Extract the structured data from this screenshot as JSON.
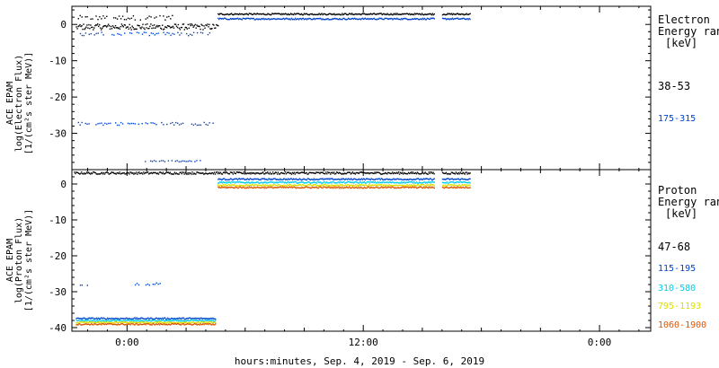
{
  "footer_label": "hours:minutes, Sep.  4, 2019 - Sep.  6, 2019",
  "x_ticks": [
    "0:00",
    "12:00",
    "0:00"
  ],
  "chart_data": [
    {
      "type": "scatter",
      "title": "",
      "ylabel": [
        "ACE EPAM",
        "log(Electron Flux)",
        "[1/(cm²s ster MeV)]"
      ],
      "legend_title": [
        "Electron",
        "Energy ranges",
        "[keV]"
      ],
      "ylim": [
        -40,
        5
      ],
      "y_ticks": [
        0,
        -10,
        -20,
        -30
      ],
      "x_unit": "hours from 2019-09-05 00:00",
      "xlim": [
        -2.8,
        26.6
      ],
      "series": [
        {
          "name": "38-53",
          "color": "#000000",
          "segments": [
            {
              "x_range": [
                -2.5,
                2.3
              ],
              "y": 2.0,
              "jitter": 0.6,
              "sparse": true
            },
            {
              "x_range": [
                -2.6,
                4.6
              ],
              "y": -0.5,
              "jitter": 0.8
            },
            {
              "x_range": [
                4.6,
                15.6
              ],
              "y": 3.0,
              "jitter": 0.2
            },
            {
              "x_range": [
                16.0,
                17.4
              ],
              "y": 3.0,
              "jitter": 0.2
            }
          ]
        },
        {
          "name": "175-315",
          "color": "#0044cc",
          "segments": [
            {
              "x_range": [
                -2.4,
                4.3
              ],
              "y": -2.5,
              "jitter": 0.5,
              "sparse": true
            },
            {
              "x_range": [
                4.6,
                15.6
              ],
              "y": 1.7,
              "jitter": 0.2
            },
            {
              "x_range": [
                16.0,
                17.4
              ],
              "y": 1.7,
              "jitter": 0.2
            },
            {
              "x_range": [
                -2.5,
                4.5
              ],
              "y": -27.2,
              "jitter": 0.4,
              "sparse": true
            },
            {
              "x_range": [
                0.9,
                3.7
              ],
              "y": -37.5,
              "jitter": 0.2,
              "sparse": true
            }
          ]
        }
      ]
    },
    {
      "type": "scatter",
      "title": "",
      "ylabel": [
        "ACE EPAM",
        "log(Proton Flux)",
        "[1/(cm²s ster MeV)]"
      ],
      "legend_title": [
        "Proton",
        "Energy ranges",
        "[keV]"
      ],
      "ylim": [
        -41,
        4
      ],
      "y_ticks": [
        0,
        -10,
        -20,
        -30,
        -40
      ],
      "x_unit": "hours from 2019-09-05 00:00",
      "xlim": [
        -2.8,
        26.6
      ],
      "series": [
        {
          "name": "47-68",
          "color": "#000000",
          "segments": [
            {
              "x_range": [
                -2.7,
                15.6
              ],
              "y": 3.2,
              "jitter": 0.3
            },
            {
              "x_range": [
                16.0,
                17.4
              ],
              "y": 3.2,
              "jitter": 0.3
            }
          ]
        },
        {
          "name": "115-195",
          "color": "#0044cc",
          "segments": [
            {
              "x_range": [
                4.6,
                15.6
              ],
              "y": 1.5,
              "jitter": 0.2
            },
            {
              "x_range": [
                16.0,
                17.4
              ],
              "y": 1.5,
              "jitter": 0.2
            },
            {
              "x_range": [
                -2.6,
                4.5
              ],
              "y": -37.3,
              "jitter": 0.2
            },
            {
              "x_range": [
                -2.4,
                -1.8
              ],
              "y": -27.9,
              "jitter": 0.2,
              "sparse": true
            },
            {
              "x_range": [
                0.3,
                1.7
              ],
              "y": -27.7,
              "jitter": 0.3,
              "sparse": true
            }
          ]
        },
        {
          "name": "310-580",
          "color": "#00ccee",
          "segments": [
            {
              "x_range": [
                4.6,
                15.6
              ],
              "y": 0.6,
              "jitter": 0.2
            },
            {
              "x_range": [
                16.0,
                17.4
              ],
              "y": 0.6,
              "jitter": 0.2
            },
            {
              "x_range": [
                -2.6,
                4.5
              ],
              "y": -37.9,
              "jitter": 0.2
            }
          ]
        },
        {
          "name": "795-1193",
          "color": "#dddd00",
          "segments": [
            {
              "x_range": [
                4.6,
                15.6
              ],
              "y": -0.2,
              "jitter": 0.2
            },
            {
              "x_range": [
                16.0,
                17.4
              ],
              "y": -0.2,
              "jitter": 0.2
            },
            {
              "x_range": [
                -2.6,
                4.5
              ],
              "y": -38.4,
              "jitter": 0.2
            }
          ]
        },
        {
          "name": "1060-1900",
          "color": "#dd5500",
          "segments": [
            {
              "x_range": [
                4.6,
                15.6
              ],
              "y": -0.8,
              "jitter": 0.2
            },
            {
              "x_range": [
                16.0,
                17.4
              ],
              "y": -0.8,
              "jitter": 0.2
            },
            {
              "x_range": [
                -2.6,
                4.5
              ],
              "y": -38.9,
              "jitter": 0.2
            }
          ]
        }
      ]
    }
  ]
}
